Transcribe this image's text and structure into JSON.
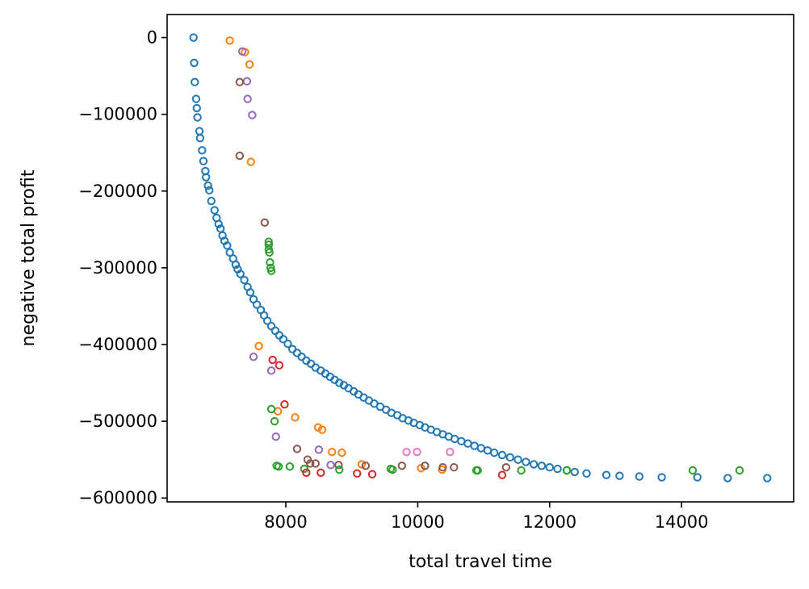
{
  "chart_data": {
    "type": "scatter",
    "title": "",
    "xlabel": "total travel time",
    "ylabel": "negative total profit",
    "xlim": [
      6200,
      15700
    ],
    "ylim": [
      -605000,
      30000
    ],
    "xticks": [
      8000,
      10000,
      12000,
      14000
    ],
    "yticks": [
      0,
      -100000,
      -200000,
      -300000,
      -400000,
      -500000,
      -600000
    ],
    "xtick_labels": [
      "8000",
      "10000",
      "12000",
      "14000"
    ],
    "ytick_labels": [
      "0",
      "−100000",
      "−200000",
      "−300000",
      "−400000",
      "−500000",
      "−600000"
    ],
    "grid": false,
    "legend": "none",
    "series": [
      {
        "color": "#1f77b4",
        "points": [
          [
            6600,
            0
          ],
          [
            6610,
            -33000
          ],
          [
            6620,
            -58000
          ],
          [
            6640,
            -80000
          ],
          [
            6650,
            -92000
          ],
          [
            6660,
            -104000
          ],
          [
            6690,
            -122000
          ],
          [
            6700,
            -131000
          ],
          [
            6730,
            -147000
          ],
          [
            6750,
            -161000
          ],
          [
            6780,
            -174000
          ],
          [
            6790,
            -182000
          ],
          [
            6820,
            -193000
          ],
          [
            6840,
            -199000
          ],
          [
            6870,
            -213000
          ],
          [
            6920,
            -225000
          ],
          [
            6950,
            -235000
          ],
          [
            6980,
            -243000
          ],
          [
            7010,
            -249000
          ],
          [
            7040,
            -258000
          ],
          [
            7070,
            -265000
          ],
          [
            7110,
            -271000
          ],
          [
            7150,
            -280000
          ],
          [
            7200,
            -288000
          ],
          [
            7240,
            -296000
          ],
          [
            7270,
            -302000
          ],
          [
            7310,
            -308000
          ],
          [
            7370,
            -316000
          ],
          [
            7420,
            -325000
          ],
          [
            7460,
            -332000
          ],
          [
            7510,
            -341000
          ],
          [
            7560,
            -348000
          ],
          [
            7620,
            -355000
          ],
          [
            7670,
            -362000
          ],
          [
            7720,
            -369000
          ],
          [
            7780,
            -376000
          ],
          [
            7840,
            -382000
          ],
          [
            7900,
            -388000
          ],
          [
            7960,
            -393000
          ],
          [
            8030,
            -399000
          ],
          [
            8100,
            -406000
          ],
          [
            8170,
            -411000
          ],
          [
            8240,
            -416000
          ],
          [
            8310,
            -421000
          ],
          [
            8380,
            -425000
          ],
          [
            8450,
            -430000
          ],
          [
            8530,
            -434000
          ],
          [
            8600,
            -438000
          ],
          [
            8670,
            -442000
          ],
          [
            8740,
            -446000
          ],
          [
            8810,
            -450000
          ],
          [
            8880,
            -453000
          ],
          [
            8950,
            -457000
          ],
          [
            9030,
            -461000
          ],
          [
            9100,
            -465000
          ],
          [
            9180,
            -469000
          ],
          [
            9260,
            -473000
          ],
          [
            9340,
            -477000
          ],
          [
            9430,
            -481000
          ],
          [
            9520,
            -485000
          ],
          [
            9600,
            -489000
          ],
          [
            9690,
            -492000
          ],
          [
            9770,
            -496000
          ],
          [
            9860,
            -499000
          ],
          [
            9940,
            -502000
          ],
          [
            10030,
            -505000
          ],
          [
            10110,
            -508000
          ],
          [
            10200,
            -511000
          ],
          [
            10290,
            -514000
          ],
          [
            10380,
            -517000
          ],
          [
            10470,
            -520000
          ],
          [
            10560,
            -523000
          ],
          [
            10660,
            -526000
          ],
          [
            10760,
            -529000
          ],
          [
            10860,
            -532000
          ],
          [
            10960,
            -535000
          ],
          [
            11060,
            -538000
          ],
          [
            11160,
            -541000
          ],
          [
            11280,
            -544000
          ],
          [
            11400,
            -547000
          ],
          [
            11520,
            -550000
          ],
          [
            11640,
            -553000
          ],
          [
            11760,
            -556000
          ],
          [
            11880,
            -558000
          ],
          [
            12000,
            -560000
          ],
          [
            12120,
            -562000
          ],
          [
            12260,
            -564000
          ],
          [
            12380,
            -566000
          ],
          [
            12560,
            -568000
          ],
          [
            12860,
            -570000
          ],
          [
            13060,
            -571000
          ],
          [
            13360,
            -572000
          ],
          [
            13700,
            -573000
          ],
          [
            14240,
            -573000
          ],
          [
            14700,
            -574000
          ],
          [
            15300,
            -574000
          ]
        ]
      },
      {
        "color": "#ff7f0e",
        "points": [
          [
            7150,
            -4000
          ],
          [
            7380,
            -19000
          ],
          [
            7450,
            -35000
          ],
          [
            7470,
            -162000
          ],
          [
            7590,
            -402000
          ],
          [
            7880,
            -487000
          ],
          [
            8140,
            -495000
          ],
          [
            8490,
            -508000
          ],
          [
            8550,
            -511000
          ],
          [
            8700,
            -540000
          ],
          [
            8850,
            -541000
          ],
          [
            9150,
            -556000
          ],
          [
            10050,
            -561000
          ],
          [
            10370,
            -563000
          ]
        ]
      },
      {
        "color": "#9467bd",
        "points": [
          [
            7340,
            -18000
          ],
          [
            7410,
            -57000
          ],
          [
            7420,
            -80000
          ],
          [
            7490,
            -101000
          ],
          [
            7510,
            -416000
          ],
          [
            7780,
            -434000
          ],
          [
            7850,
            -520000
          ],
          [
            8500,
            -537000
          ],
          [
            8680,
            -557000
          ]
        ]
      },
      {
        "color": "#8c564b",
        "points": [
          [
            7300,
            -58000
          ],
          [
            7300,
            -154000
          ],
          [
            7680,
            -241000
          ],
          [
            8170,
            -536000
          ],
          [
            8330,
            -550000
          ],
          [
            8370,
            -555000
          ],
          [
            8450,
            -555000
          ],
          [
            8800,
            -557000
          ],
          [
            9210,
            -558000
          ],
          [
            9760,
            -558000
          ],
          [
            10110,
            -558000
          ],
          [
            10380,
            -560000
          ],
          [
            10550,
            -560000
          ],
          [
            11340,
            -560000
          ]
        ]
      },
      {
        "color": "#2ca02c",
        "points": [
          [
            7740,
            -266000
          ],
          [
            7740,
            -270000
          ],
          [
            7740,
            -276000
          ],
          [
            7750,
            -280000
          ],
          [
            7760,
            -293000
          ],
          [
            7770,
            -300000
          ],
          [
            7780,
            -304000
          ],
          [
            7780,
            -484000
          ],
          [
            7830,
            -500000
          ],
          [
            7860,
            -558000
          ],
          [
            7890,
            -559000
          ],
          [
            8060,
            -559000
          ],
          [
            8280,
            -562000
          ],
          [
            8810,
            -563000
          ],
          [
            9590,
            -562000
          ],
          [
            9620,
            -563000
          ],
          [
            10890,
            -564000
          ],
          [
            10910,
            -564000
          ],
          [
            11570,
            -564000
          ],
          [
            12260,
            -564000
          ],
          [
            14170,
            -564000
          ],
          [
            14880,
            -564000
          ]
        ]
      },
      {
        "color": "#d62728",
        "points": [
          [
            7800,
            -420000
          ],
          [
            7900,
            -427000
          ],
          [
            7980,
            -478000
          ],
          [
            8310,
            -567000
          ],
          [
            8530,
            -567000
          ],
          [
            9080,
            -568000
          ],
          [
            9310,
            -569000
          ],
          [
            11280,
            -570000
          ]
        ]
      },
      {
        "color": "#e377c2",
        "points": [
          [
            9830,
            -540000
          ],
          [
            9990,
            -540000
          ],
          [
            10490,
            -540000
          ]
        ]
      }
    ]
  }
}
